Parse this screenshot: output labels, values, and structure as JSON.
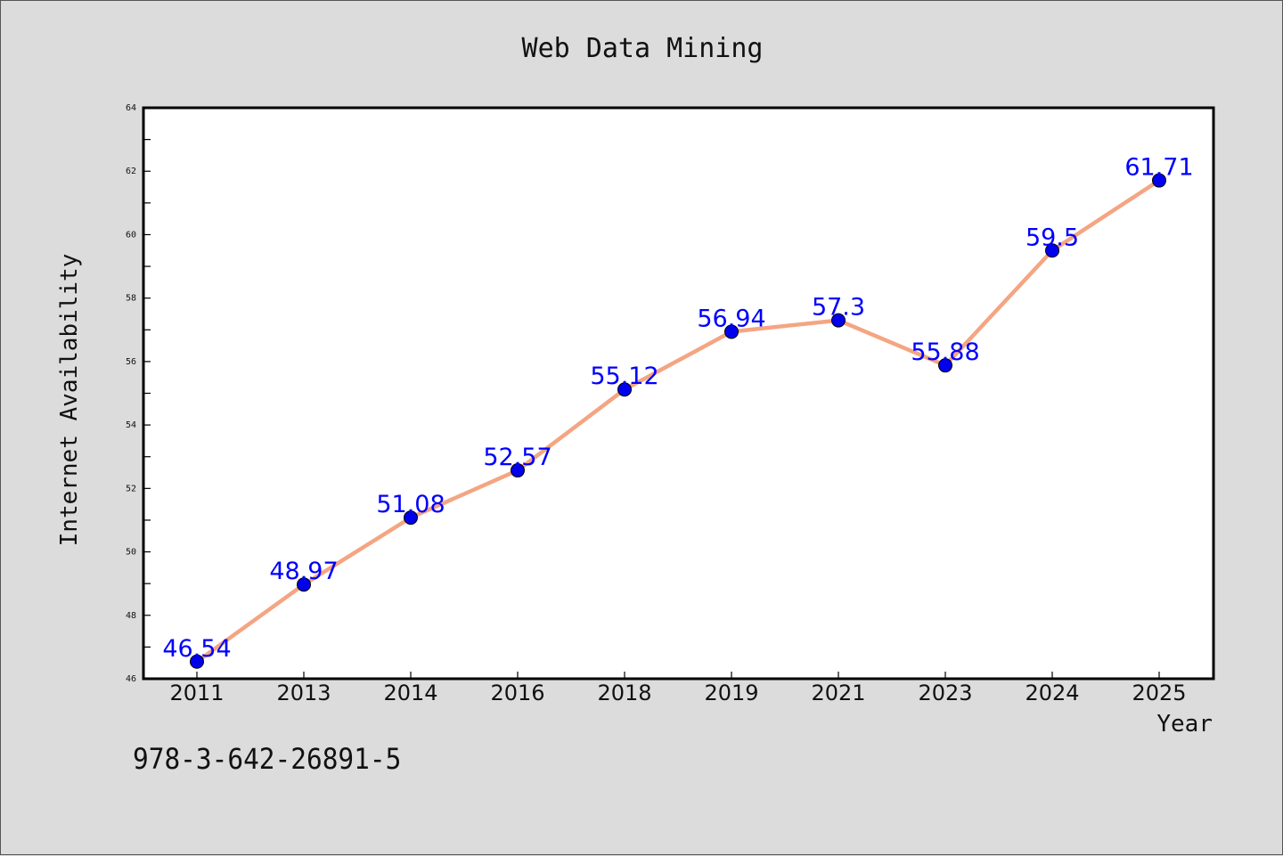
{
  "chart_data": {
    "type": "line",
    "title": "Web Data Mining",
    "xlabel": "Year",
    "ylabel": "Internet Availability",
    "categories": [
      "2011",
      "2013",
      "2014",
      "2016",
      "2018",
      "2019",
      "2021",
      "2023",
      "2024",
      "2025"
    ],
    "series": [
      {
        "values": [
          46.54,
          48.97,
          51.08,
          52.57,
          55.12,
          56.94,
          57.3,
          55.88,
          59.5,
          61.71
        ],
        "data_labels": [
          "46.54",
          "48.97",
          "51.08",
          "52.57",
          "55.12",
          "56.94",
          "57.3",
          "55.88",
          "59.5",
          "61.71"
        ]
      }
    ],
    "ylim": [
      46,
      64
    ],
    "yticks": [
      "46",
      "48",
      "50",
      "52",
      "54",
      "56",
      "58",
      "60",
      "62",
      "64"
    ],
    "grid": false,
    "line_color": "#f4a582",
    "marker_color": "#0000ee",
    "label_color": "#0000ff"
  },
  "footer": {
    "isbn": "978-3-642-26891-5"
  }
}
